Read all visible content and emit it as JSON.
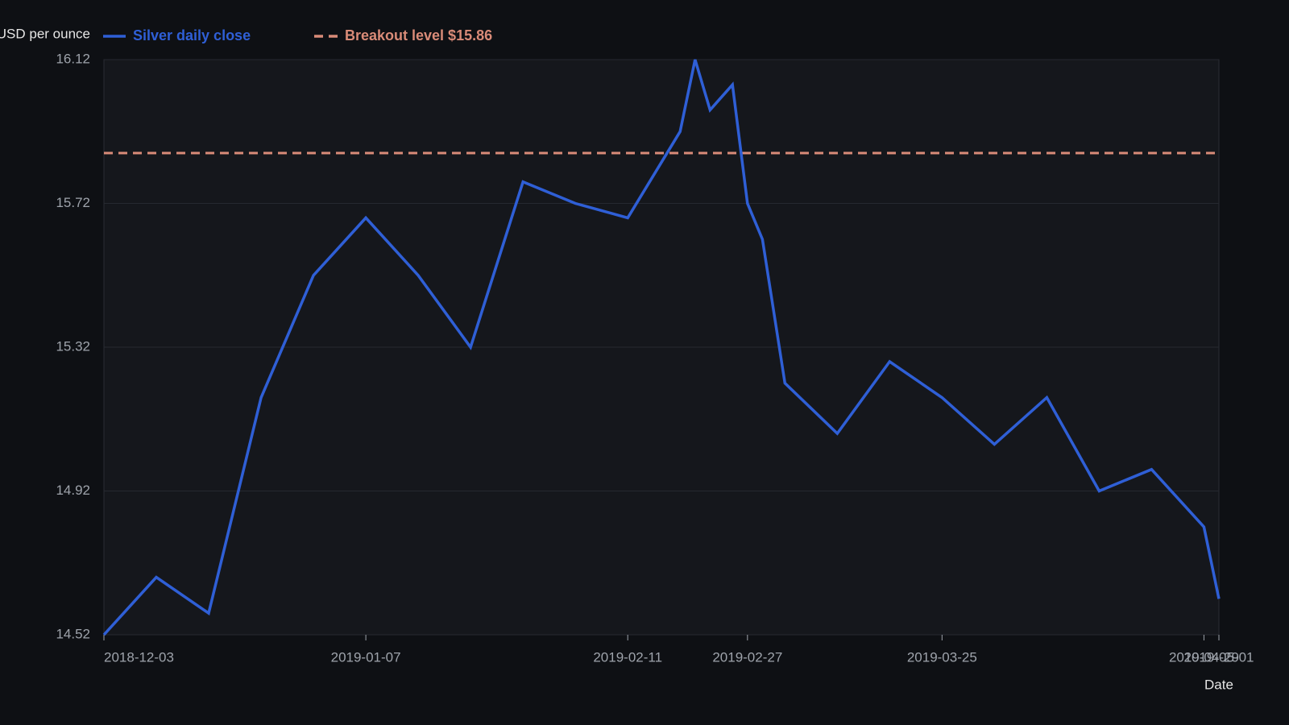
{
  "chart_data": {
    "type": "line",
    "y_label": "USD per ounce",
    "x_label": "Date",
    "x": [
      "2018-12-03",
      "2018-12-10",
      "2018-12-17",
      "2018-12-24",
      "2018-12-31",
      "2019-01-07",
      "2019-01-14",
      "2019-01-21",
      "2019-01-28",
      "2019-02-04",
      "2019-02-11",
      "2019-02-18",
      "2019-02-20",
      "2019-02-22",
      "2019-02-25",
      "2019-02-27",
      "2019-03-01",
      "2019-03-04",
      "2019-03-11",
      "2019-03-18",
      "2019-03-25",
      "2019-04-01",
      "2019-04-08",
      "2019-04-15",
      "2019-04-22",
      "2019-04-29",
      "2019-05-01"
    ],
    "series": [
      {
        "name": "Silver daily close",
        "color": "#2f5fd6",
        "values": [
          14.52,
          14.68,
          14.58,
          15.18,
          15.52,
          15.68,
          15.52,
          15.32,
          15.78,
          15.72,
          15.68,
          15.92,
          16.12,
          15.98,
          16.05,
          15.72,
          15.62,
          15.22,
          15.08,
          15.28,
          15.18,
          15.05,
          15.18,
          14.92,
          14.98,
          14.82,
          14.62
        ]
      }
    ],
    "reference": {
      "name": "Breakout level $15.86",
      "value": 15.86,
      "color": "#d98b78"
    },
    "xlim": [
      "2018-12-03",
      "2019-05-01"
    ],
    "xticks": [
      "2018-12-03",
      "2019-01-07",
      "2019-02-11",
      "2019-02-27",
      "2019-03-25",
      "2019-04-29",
      "2019-05-01"
    ],
    "ylim": [
      14.52,
      16.12
    ],
    "yticks": [
      14.52,
      14.92,
      15.32,
      15.72,
      16.12
    ],
    "grid": true
  }
}
